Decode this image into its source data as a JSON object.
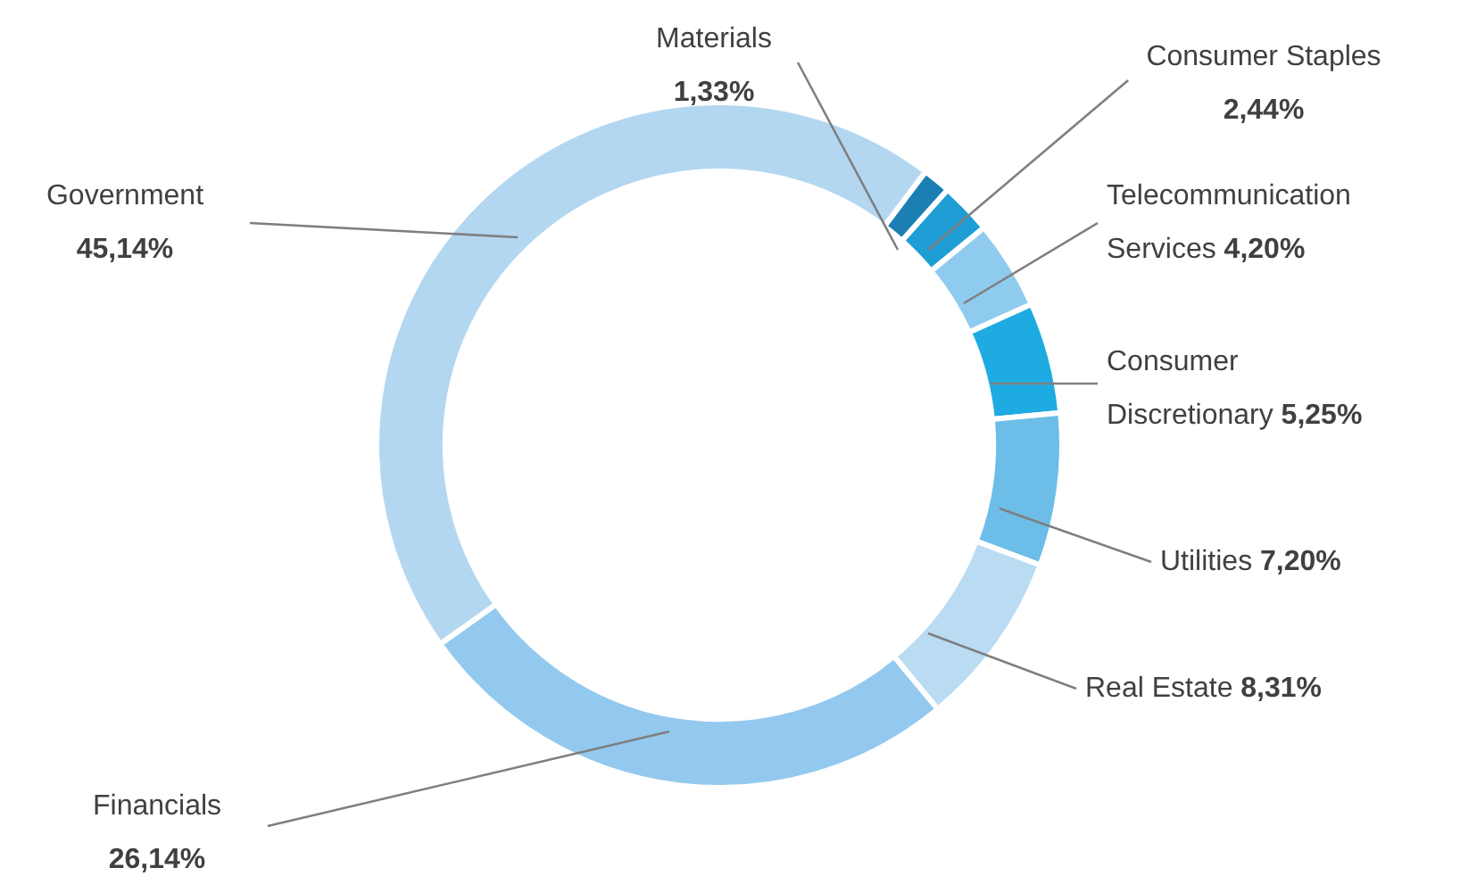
{
  "chart_data": {
    "type": "donut",
    "categories": [
      "Materials",
      "Consumer Staples",
      "Telecommunication Services",
      "Consumer Discretionary",
      "Utilities",
      "Real Estate",
      "Financials",
      "Government"
    ],
    "values": [
      1.33,
      2.44,
      4.2,
      5.25,
      7.2,
      8.31,
      26.14,
      45.14
    ],
    "value_labels": [
      "1,33%",
      "2,44%",
      "4,20%",
      "5,25%",
      "7,20%",
      "8,31%",
      "26,14%",
      "45,14%"
    ],
    "colors": [
      "#1b7fb4",
      "#1f9dd5",
      "#8fcbee",
      "#1eabe2",
      "#6cbde8",
      "#b9dcf3",
      "#93c9ee",
      "#b3d7f1"
    ],
    "legend": false
  }
}
